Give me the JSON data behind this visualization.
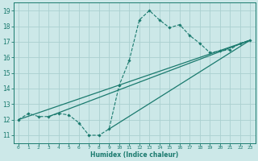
{
  "xlabel": "Humidex (Indice chaleur)",
  "bg_color": "#cce8e8",
  "line_color": "#1a7a6e",
  "grid_color": "#aad0d0",
  "xlim": [
    -0.5,
    23.5
  ],
  "ylim": [
    10.5,
    19.5
  ],
  "xticks": [
    0,
    1,
    2,
    3,
    4,
    5,
    6,
    7,
    8,
    9,
    10,
    11,
    12,
    13,
    14,
    15,
    16,
    17,
    18,
    19,
    20,
    21,
    22,
    23
  ],
  "yticks": [
    11,
    12,
    13,
    14,
    15,
    16,
    17,
    18,
    19
  ],
  "series": [
    {
      "x": [
        0,
        1,
        2,
        3,
        4,
        5,
        6,
        7,
        8,
        9,
        10,
        11,
        12,
        13,
        14,
        15,
        16,
        17,
        18,
        19,
        20,
        21,
        22,
        23
      ],
      "y": [
        12.0,
        12.4,
        12.2,
        12.2,
        12.4,
        12.3,
        11.8,
        11.0,
        11.0,
        11.4,
        14.2,
        15.8,
        18.4,
        19.0,
        18.4,
        17.9,
        18.1,
        17.4,
        16.9,
        16.3,
        16.4,
        16.5,
        16.9,
        17.1
      ],
      "marker": "D",
      "markersize": 1.8,
      "linestyle": "--",
      "linewidth": 0.8
    },
    {
      "x": [
        0,
        23
      ],
      "y": [
        12.0,
        17.1
      ],
      "marker": null,
      "linestyle": "-",
      "linewidth": 0.9
    },
    {
      "x": [
        3,
        23
      ],
      "y": [
        12.2,
        17.1
      ],
      "marker": null,
      "linestyle": "-",
      "linewidth": 0.9
    },
    {
      "x": [
        9,
        23
      ],
      "y": [
        11.4,
        17.1
      ],
      "marker": null,
      "linestyle": "-",
      "linewidth": 0.9
    }
  ]
}
